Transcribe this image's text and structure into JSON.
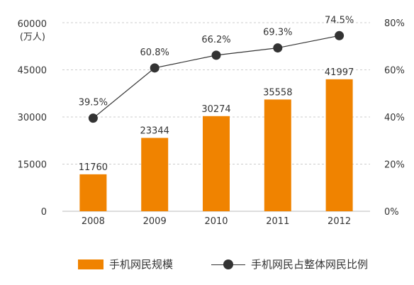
{
  "chart_data": {
    "type": "bar",
    "categories": [
      "2008",
      "2009",
      "2010",
      "2011",
      "2012"
    ],
    "series": [
      {
        "name": "手机网民规模",
        "type": "bar",
        "axis": "left",
        "values": [
          11760,
          23344,
          30274,
          35558,
          41997
        ],
        "labels": [
          "11760",
          "23344",
          "30274",
          "35558",
          "41997"
        ],
        "color": "#F08300"
      },
      {
        "name": "手机网民占整体网民比例",
        "type": "line",
        "axis": "right",
        "values": [
          39.5,
          60.8,
          66.2,
          69.3,
          74.5
        ],
        "labels": [
          "39.5%",
          "60.8%",
          "66.2%",
          "69.3%",
          "74.5%"
        ],
        "color": "#333333"
      }
    ],
    "y_left": {
      "unit_line1": "60000",
      "unit_line2": "(万人)",
      "ticks": [
        "0",
        "15000",
        "30000",
        "45000"
      ],
      "tick_values": [
        0,
        15000,
        30000,
        45000
      ],
      "ylim": [
        0,
        60000
      ]
    },
    "y_right": {
      "ticks": [
        "0%",
        "20%",
        "40%",
        "60%",
        "80%"
      ],
      "tick_values": [
        0,
        20,
        40,
        60,
        80
      ],
      "ylim": [
        0,
        80
      ]
    },
    "grid": true,
    "legend_position": "bottom"
  },
  "legend": {
    "bar_label": "手机网民规模",
    "line_label": "手机网民占整体网民比例"
  }
}
